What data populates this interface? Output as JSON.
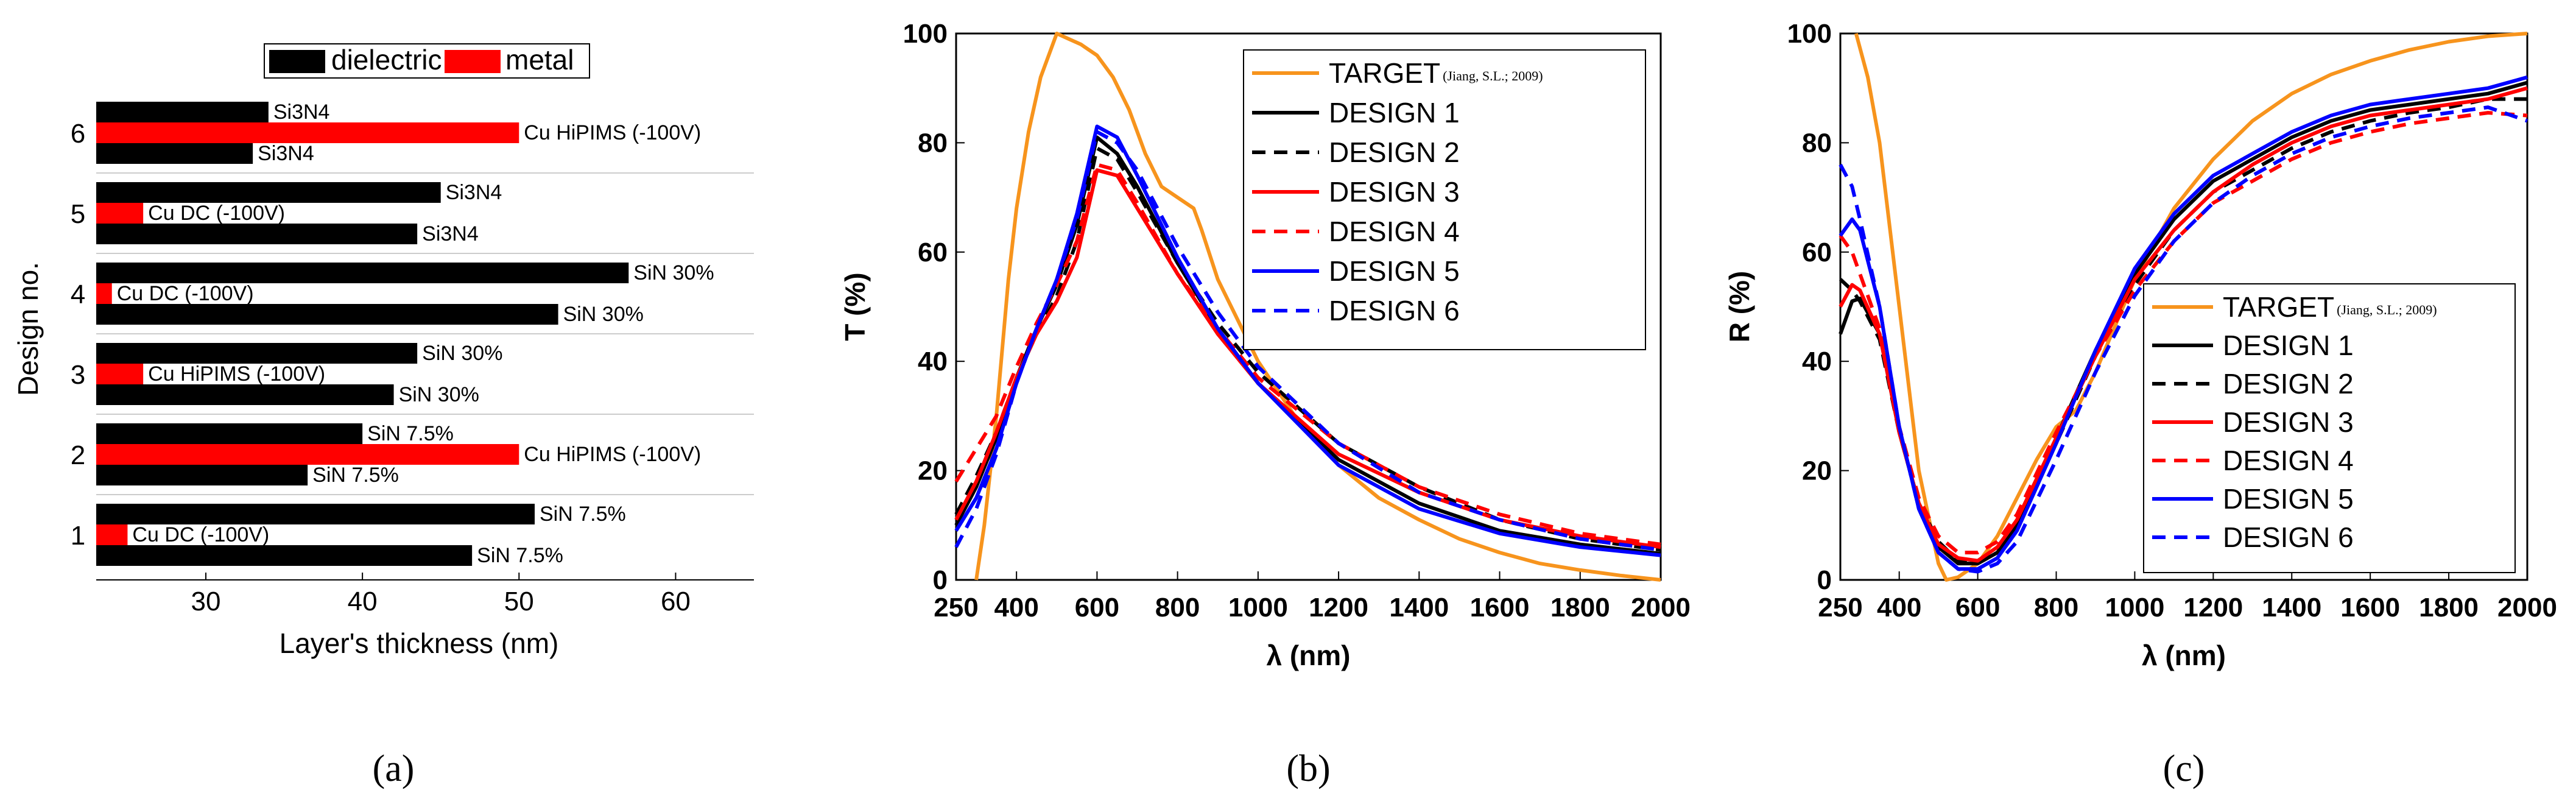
{
  "chart_data": [
    {
      "panel": "(a)",
      "type": "bar",
      "orientation": "horizontal",
      "xlabel": "Layer's thickness (nm)",
      "ylabel": "Design no.",
      "xlim": [
        23,
        65
      ],
      "xticks": [
        30,
        40,
        50,
        60
      ],
      "categories": [
        "1",
        "2",
        "3",
        "4",
        "5",
        "6"
      ],
      "legend": {
        "placement": "top",
        "entries": [
          {
            "name": "dielectric",
            "color": "#000000"
          },
          {
            "name": "metal",
            "color": "#ff0000"
          }
        ]
      },
      "designs": [
        {
          "design": "1",
          "layers": [
            {
              "material": "SiN 7.5%",
              "type": "dielectric",
              "thickness": 51
            },
            {
              "material": "Cu DC (-100V)",
              "type": "metal",
              "thickness": 25
            },
            {
              "material": "SiN 7.5%",
              "type": "dielectric",
              "thickness": 47
            }
          ]
        },
        {
          "design": "2",
          "layers": [
            {
              "material": "SiN 7.5%",
              "type": "dielectric",
              "thickness": 40
            },
            {
              "material": "Cu HiPIMS (-100V)",
              "type": "metal",
              "thickness": 50
            },
            {
              "material": "SiN 7.5%",
              "type": "dielectric",
              "thickness": 36.5
            }
          ]
        },
        {
          "design": "3",
          "layers": [
            {
              "material": "SiN 30%",
              "type": "dielectric",
              "thickness": 43.5
            },
            {
              "material": "Cu HiPIMS (-100V)",
              "type": "metal",
              "thickness": 26
            },
            {
              "material": "SiN 30%",
              "type": "dielectric",
              "thickness": 42
            }
          ]
        },
        {
          "design": "4",
          "layers": [
            {
              "material": "SiN 30%",
              "type": "dielectric",
              "thickness": 57
            },
            {
              "material": "Cu DC (-100V)",
              "type": "metal",
              "thickness": 24
            },
            {
              "material": "SiN 30%",
              "type": "dielectric",
              "thickness": 52.5
            }
          ]
        },
        {
          "design": "5",
          "layers": [
            {
              "material": "Si3N4",
              "type": "dielectric",
              "thickness": 45
            },
            {
              "material": "Cu DC (-100V)",
              "type": "metal",
              "thickness": 26
            },
            {
              "material": "Si3N4",
              "type": "dielectric",
              "thickness": 43.5
            }
          ]
        },
        {
          "design": "6",
          "layers": [
            {
              "material": "Si3N4",
              "type": "dielectric",
              "thickness": 34
            },
            {
              "material": "Cu HiPIMS (-100V)",
              "type": "metal",
              "thickness": 50
            },
            {
              "material": "Si3N4",
              "type": "dielectric",
              "thickness": 33
            }
          ]
        }
      ]
    },
    {
      "panel": "(b)",
      "type": "line",
      "xlabel": "λ (nm)",
      "ylabel": "T (%)",
      "xlim": [
        250,
        2000
      ],
      "ylim": [
        0,
        100
      ],
      "xticks": [
        250,
        400,
        600,
        800,
        1000,
        1200,
        1400,
        1600,
        1800,
        2000
      ],
      "yticks": [
        0,
        20,
        40,
        60,
        80,
        100
      ],
      "legend": {
        "placement": "top-right"
      },
      "series": [
        {
          "name": "TARGET",
          "ref": "(Jiang, S.L.; 2009)",
          "color": "#f7941d",
          "dash": "solid",
          "x": [
            300,
            320,
            350,
            380,
            400,
            430,
            460,
            500,
            530,
            560,
            600,
            640,
            680,
            720,
            760,
            800,
            840,
            860,
            900,
            1000,
            1100,
            1200,
            1300,
            1400,
            1500,
            1600,
            1700,
            1800,
            1900,
            2000
          ],
          "y": [
            0,
            10,
            30,
            55,
            68,
            82,
            92,
            100,
            99,
            98,
            96,
            92,
            86,
            78,
            72,
            70,
            68,
            64,
            55,
            40,
            29,
            21,
            15,
            11,
            7.5,
            5,
            3,
            1.8,
            0.8,
            0
          ]
        },
        {
          "name": "DESIGN 1",
          "color": "#000000",
          "dash": "solid",
          "x": [
            250,
            300,
            350,
            400,
            450,
            500,
            550,
            600,
            650,
            700,
            800,
            900,
            1000,
            1200,
            1400,
            1600,
            1800,
            2000
          ],
          "y": [
            10,
            17,
            26,
            37,
            46,
            54,
            65,
            81,
            78,
            72,
            58,
            46,
            36,
            22,
            14,
            9,
            6.5,
            4.8
          ]
        },
        {
          "name": "DESIGN 2",
          "color": "#000000",
          "dash": "dashed",
          "x": [
            250,
            300,
            350,
            400,
            450,
            500,
            550,
            600,
            650,
            700,
            800,
            900,
            1000,
            1200,
            1400,
            1600,
            1800,
            2000
          ],
          "y": [
            12,
            19,
            27,
            37,
            45,
            52,
            62,
            79,
            77,
            71,
            58,
            47,
            38,
            25,
            17,
            11,
            7.5,
            5.5
          ]
        },
        {
          "name": "DESIGN 3",
          "color": "#ff0000",
          "dash": "solid",
          "x": [
            250,
            300,
            350,
            400,
            450,
            500,
            550,
            600,
            650,
            700,
            800,
            900,
            1000,
            1200,
            1400,
            1600,
            1800,
            2000
          ],
          "y": [
            11,
            18,
            27,
            37,
            45,
            51,
            59,
            75,
            74,
            68,
            56,
            45,
            36,
            23,
            16,
            11,
            8,
            6
          ]
        },
        {
          "name": "DESIGN 4",
          "color": "#ff0000",
          "dash": "dashed",
          "x": [
            250,
            300,
            350,
            400,
            450,
            500,
            550,
            600,
            650,
            700,
            800,
            900,
            1000,
            1200,
            1400,
            1600,
            1800,
            2000
          ],
          "y": [
            18,
            24,
            30,
            39,
            47,
            54,
            62,
            76,
            75,
            69,
            56,
            46,
            37,
            25,
            17,
            12,
            8.5,
            6.5
          ]
        },
        {
          "name": "DESIGN 5",
          "color": "#0000ff",
          "dash": "solid",
          "x": [
            250,
            300,
            350,
            400,
            450,
            500,
            550,
            600,
            650,
            700,
            800,
            900,
            1000,
            1200,
            1400,
            1600,
            1800,
            2000
          ],
          "y": [
            9,
            15,
            24,
            36,
            46,
            55,
            67,
            83,
            81,
            74,
            59,
            46,
            36,
            21,
            13,
            8.5,
            6,
            4.5
          ]
        },
        {
          "name": "DESIGN 6",
          "color": "#0000ff",
          "dash": "dashed",
          "x": [
            250,
            300,
            350,
            400,
            450,
            500,
            550,
            600,
            650,
            700,
            800,
            900,
            1000,
            1200,
            1400,
            1600,
            1800,
            2000
          ],
          "y": [
            6,
            13,
            23,
            36,
            46,
            55,
            66,
            82,
            80,
            75,
            61,
            49,
            39,
            25,
            16,
            11,
            7.5,
            5.5
          ]
        }
      ]
    },
    {
      "panel": "(c)",
      "type": "line",
      "xlabel": "λ (nm)",
      "ylabel": "R (%)",
      "xlim": [
        250,
        2000
      ],
      "ylim": [
        0,
        100
      ],
      "xticks": [
        250,
        400,
        600,
        800,
        1000,
        1200,
        1400,
        1600,
        1800,
        2000
      ],
      "yticks": [
        0,
        20,
        40,
        60,
        80,
        100
      ],
      "legend": {
        "placement": "bottom-right"
      },
      "series": [
        {
          "name": "TARGET",
          "ref": "(Jiang, S.L.; 2009)",
          "color": "#f7941d",
          "dash": "solid",
          "x": [
            290,
            320,
            350,
            400,
            450,
            500,
            520,
            550,
            600,
            650,
            700,
            750,
            800,
            850,
            900,
            1000,
            1100,
            1200,
            1300,
            1400,
            1500,
            1600,
            1700,
            1800,
            1900,
            2000
          ],
          "y": [
            100,
            92,
            80,
            50,
            20,
            3,
            0,
            0.5,
            3,
            8,
            15,
            22,
            28,
            31,
            38,
            55,
            68,
            77,
            84,
            89,
            92.5,
            95,
            97,
            98.5,
            99.5,
            100
          ]
        },
        {
          "name": "DESIGN 1",
          "color": "#000000",
          "dash": "solid",
          "x": [
            250,
            280,
            300,
            350,
            400,
            450,
            500,
            550,
            600,
            650,
            700,
            800,
            900,
            1000,
            1100,
            1200,
            1300,
            1400,
            1500,
            1600,
            1700,
            1800,
            1900,
            2000
          ],
          "y": [
            45,
            51,
            51.5,
            45,
            27,
            14,
            6,
            3,
            3,
            5,
            10,
            26,
            42,
            56,
            66,
            73,
            77,
            81,
            84,
            86,
            87,
            88,
            89,
            91
          ]
        },
        {
          "name": "DESIGN 2",
          "color": "#000000",
          "dash": "dashed",
          "x": [
            250,
            280,
            300,
            350,
            400,
            450,
            500,
            550,
            600,
            650,
            700,
            800,
            900,
            1000,
            1100,
            1200,
            1300,
            1400,
            1500,
            1600,
            1700,
            1800,
            1900,
            2000
          ],
          "y": [
            55,
            53,
            51,
            44,
            27,
            14,
            7,
            3.5,
            3,
            5,
            10,
            25,
            41,
            54,
            64,
            71,
            75,
            79,
            82,
            84,
            85.5,
            86.5,
            88,
            88
          ]
        },
        {
          "name": "DESIGN 3",
          "color": "#ff0000",
          "dash": "solid",
          "x": [
            250,
            280,
            300,
            350,
            400,
            450,
            500,
            550,
            600,
            650,
            700,
            800,
            900,
            1000,
            1100,
            1200,
            1300,
            1400,
            1500,
            1600,
            1700,
            1800,
            1900,
            2000
          ],
          "y": [
            50,
            54,
            53,
            45,
            27,
            14,
            6.5,
            4,
            3.5,
            6,
            11,
            26,
            41,
            55,
            64,
            71,
            76,
            80,
            83,
            85,
            86,
            87,
            88,
            90
          ]
        },
        {
          "name": "DESIGN 4",
          "color": "#ff0000",
          "dash": "dashed",
          "x": [
            250,
            280,
            300,
            350,
            400,
            450,
            500,
            550,
            600,
            650,
            700,
            800,
            900,
            1000,
            1100,
            1200,
            1300,
            1400,
            1500,
            1600,
            1700,
            1800,
            1900,
            2000
          ],
          "y": [
            63,
            60,
            56,
            46,
            28,
            15,
            8,
            5,
            5,
            7,
            12,
            27,
            41,
            53,
            62,
            69,
            73,
            77,
            80,
            82,
            83.5,
            84.5,
            85.5,
            85
          ]
        },
        {
          "name": "DESIGN 5",
          "color": "#0000ff",
          "dash": "solid",
          "x": [
            250,
            280,
            300,
            350,
            400,
            450,
            500,
            550,
            600,
            650,
            700,
            800,
            900,
            1000,
            1100,
            1200,
            1300,
            1400,
            1500,
            1600,
            1700,
            1800,
            1900,
            2000
          ],
          "y": [
            63,
            66,
            64,
            50,
            28,
            13,
            5,
            2,
            2,
            4,
            9,
            25,
            42,
            57,
            67,
            74,
            78,
            82,
            85,
            87,
            88,
            89,
            90,
            92
          ]
        },
        {
          "name": "DESIGN 6",
          "color": "#0000ff",
          "dash": "dashed",
          "x": [
            250,
            280,
            300,
            350,
            400,
            450,
            500,
            550,
            600,
            650,
            700,
            800,
            900,
            1000,
            1100,
            1200,
            1300,
            1400,
            1500,
            1600,
            1700,
            1800,
            1900,
            2000
          ],
          "y": [
            76,
            72,
            66,
            50,
            28,
            13,
            5,
            2,
            1.5,
            3,
            7,
            22,
            38,
            52,
            62,
            69,
            74,
            78,
            81,
            83,
            84.5,
            85.5,
            86.5,
            84
          ]
        }
      ]
    }
  ]
}
